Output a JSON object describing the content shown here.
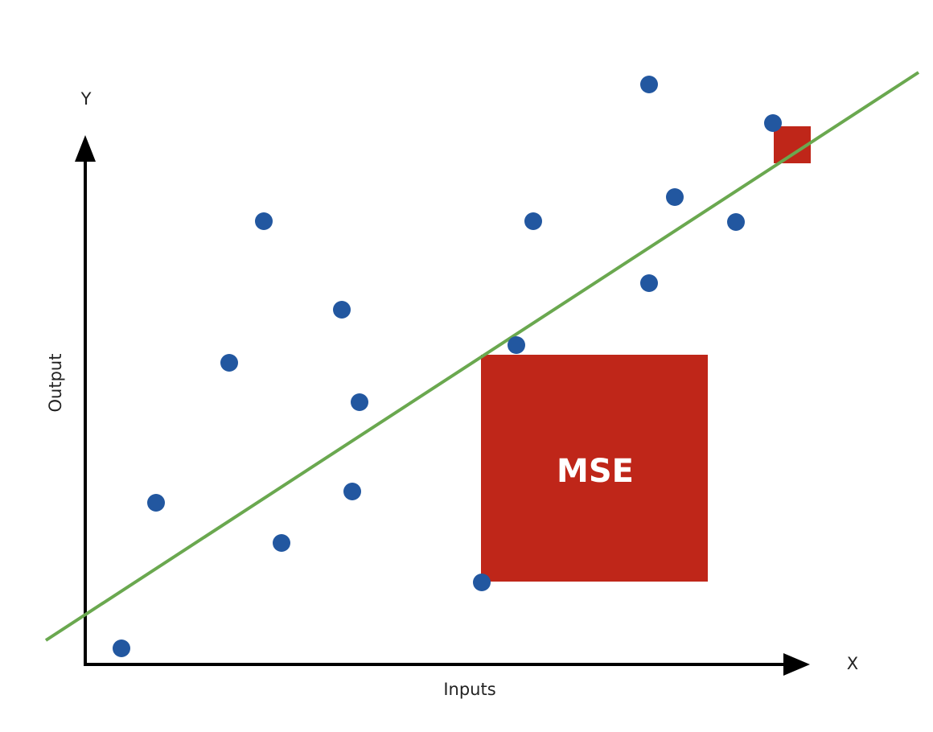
{
  "axes": {
    "y_letter": "Y",
    "x_letter": "X",
    "y_label": "Output",
    "x_label": "Inputs"
  },
  "square_label": "MSE"
}
